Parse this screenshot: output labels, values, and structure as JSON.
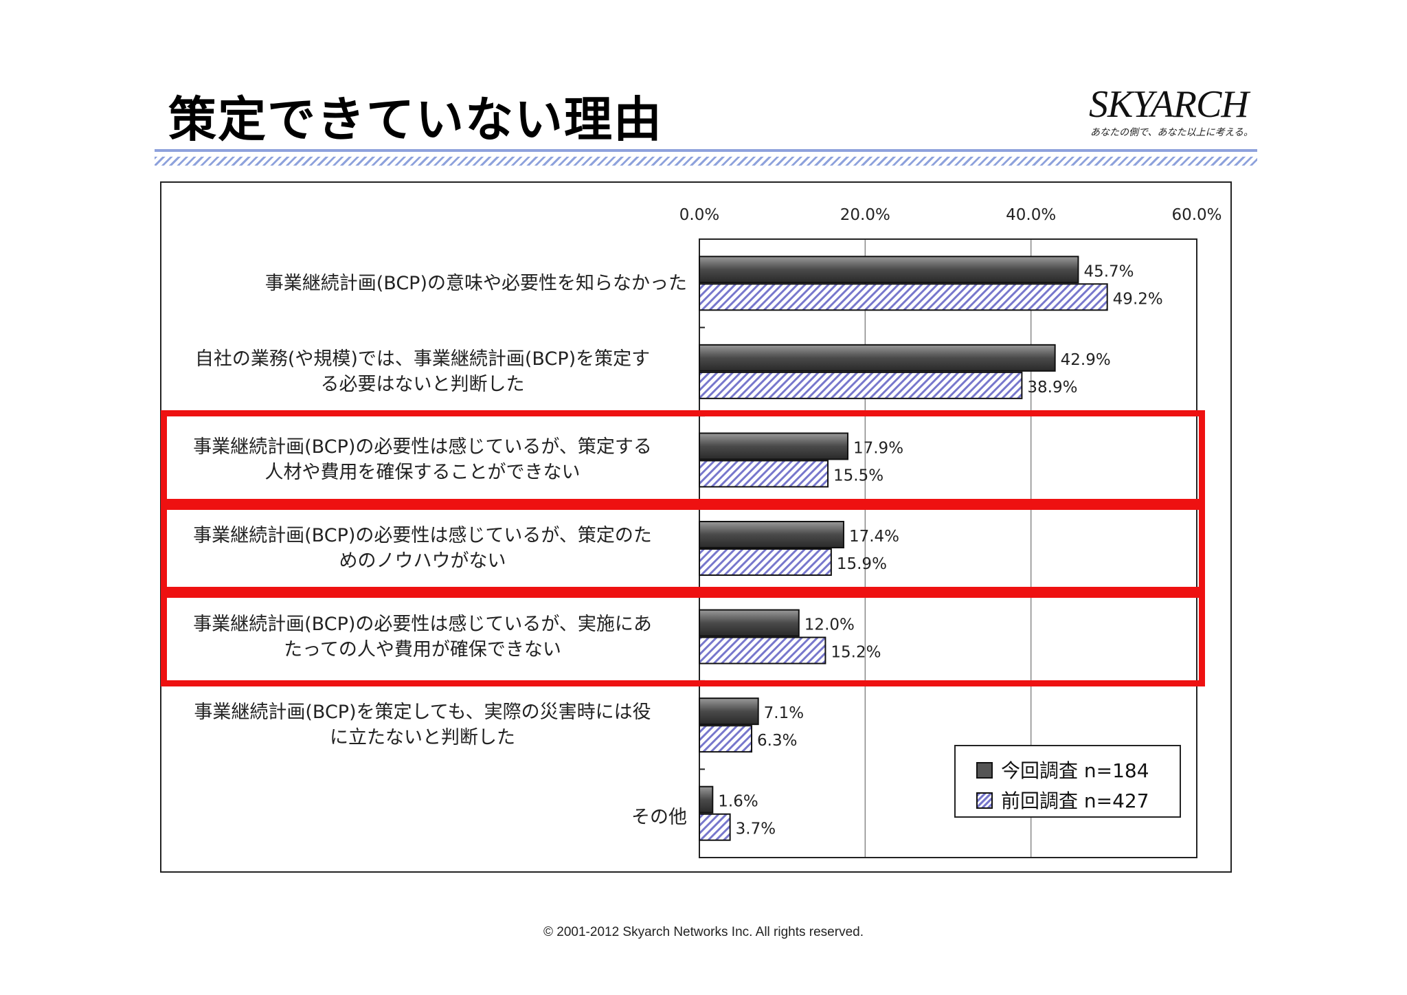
{
  "page": {
    "title": "策定できていない理由",
    "logo": {
      "name": "SKYARCH",
      "tagline": "あなたの側で、あなた以上に考える。"
    },
    "copyright": "© 2001-2012 Skyarch Networks Inc. All rights reserved."
  },
  "colors": {
    "current": "#555555",
    "previous_hatch": "#7777cc",
    "highlight": "#ee1111",
    "rule": "#8ea2dc"
  },
  "chart_data": {
    "type": "bar",
    "orientation": "horizontal",
    "xlim": [
      0,
      60
    ],
    "ticks": [
      "0.0%",
      "20.0%",
      "40.0%",
      "60.0%"
    ],
    "tick_values": [
      0,
      20,
      40,
      60
    ],
    "grid": true,
    "legend_position": "bottom-right",
    "categories": [
      {
        "line1": "事業継続計画(BCP)の意味や必要性を知らなかった",
        "line2": ""
      },
      {
        "line1": "自社の業務(や規模)では、事業継続計画(BCP)を策定す",
        "line2": "る必要はないと判断した"
      },
      {
        "line1": "事業継続計画(BCP)の必要性は感じているが、策定する",
        "line2": "人材や費用を確保することができない"
      },
      {
        "line1": "事業継続計画(BCP)の必要性は感じているが、策定のた",
        "line2": "めのノウハウがない"
      },
      {
        "line1": "事業継続計画(BCP)の必要性は感じているが、実施にあ",
        "line2": "たっての人や費用が確保できない"
      },
      {
        "line1": "事業継続計画(BCP)を策定しても、実際の災害時には役",
        "line2": "に立たないと判断した"
      },
      {
        "line1": "その他",
        "line2": ""
      }
    ],
    "highlighted_categories": [
      2,
      3,
      4
    ],
    "series": [
      {
        "name": "今回調査 n=184",
        "values": [
          45.7,
          42.9,
          17.9,
          17.4,
          12.0,
          7.1,
          1.6
        ],
        "labels": [
          "45.7%",
          "42.9%",
          "17.9%",
          "17.4%",
          "12.0%",
          "7.1%",
          "1.6%"
        ]
      },
      {
        "name": "前回調査 n=427",
        "values": [
          49.2,
          38.9,
          15.5,
          15.9,
          15.2,
          6.3,
          3.7
        ],
        "labels": [
          "49.2%",
          "38.9%",
          "15.5%",
          "15.9%",
          "15.2%",
          "6.3%",
          "3.7%"
        ]
      }
    ]
  }
}
